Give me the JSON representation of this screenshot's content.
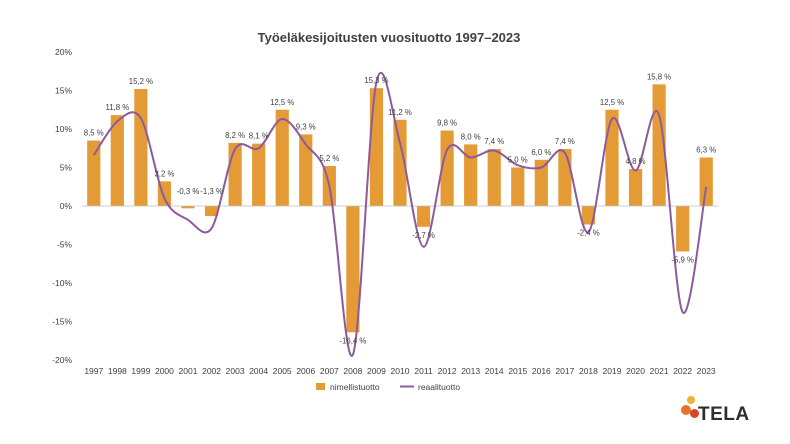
{
  "chart_data": {
    "type": "bar",
    "title": "Työeläkesijoitusten  vuosituotto 1997–2023",
    "categories": [
      "1997",
      "1998",
      "1999",
      "2000",
      "2001",
      "2002",
      "2003",
      "2004",
      "2005",
      "2006",
      "2007",
      "2008",
      "2009",
      "2010",
      "2011",
      "2012",
      "2013",
      "2014",
      "2015",
      "2016",
      "2017",
      "2018",
      "2019",
      "2020",
      "2021",
      "2022",
      "2023"
    ],
    "series": [
      {
        "name": "nimellistuotto",
        "kind": "bar",
        "color": "#E49B36",
        "values": [
          8.5,
          11.8,
          15.2,
          3.2,
          -0.3,
          -1.3,
          8.2,
          8.1,
          12.5,
          9.3,
          5.2,
          -16.4,
          15.3,
          11.2,
          -2.7,
          9.8,
          8.0,
          7.4,
          5.0,
          6.0,
          7.4,
          -2.4,
          12.5,
          4.8,
          15.8,
          -5.9,
          6.3
        ],
        "labels": [
          "8,5 %",
          "11,8 %",
          "15,2 %",
          "3,2 %",
          "-0,3 %",
          "-1,3 %",
          "8,2 %",
          "8,1 %",
          "12,5 %",
          "9,3 %",
          "5,2 %",
          "-16,4 %",
          "15,3 %",
          "11,2 %",
          "-2,7 %",
          "9,8 %",
          "8,0 %",
          "7,4 %",
          "5,0 %",
          "6,0 %",
          "7,4 %",
          "-2,4 %",
          "12,5 %",
          "4,8 %",
          "15,8 %",
          "-5,9 %",
          "6,3 %"
        ]
      },
      {
        "name": "reaalituotto",
        "kind": "line",
        "color": "#8E5A9E",
        "values": [
          6.6,
          11.0,
          11.4,
          1.0,
          -1.8,
          -2.9,
          7.4,
          7.5,
          11.3,
          8.0,
          2.6,
          -19.3,
          16.1,
          8.2,
          -5.3,
          7.3,
          6.3,
          7.2,
          5.3,
          5.0,
          6.9,
          -3.4,
          11.3,
          4.6,
          11.8,
          -13.8,
          2.5
        ]
      }
    ],
    "ylim": [
      -20,
      20
    ],
    "yticks": [
      -20,
      -15,
      -10,
      -5,
      0,
      5,
      10,
      15,
      20
    ],
    "ytick_labels": [
      "-20%",
      "-15%",
      "-10%",
      "-5%",
      "0%",
      "5%",
      "10%",
      "15%",
      "20%"
    ],
    "legend_position": "bottom",
    "grid": false
  },
  "logo": {
    "text": "TELA"
  }
}
